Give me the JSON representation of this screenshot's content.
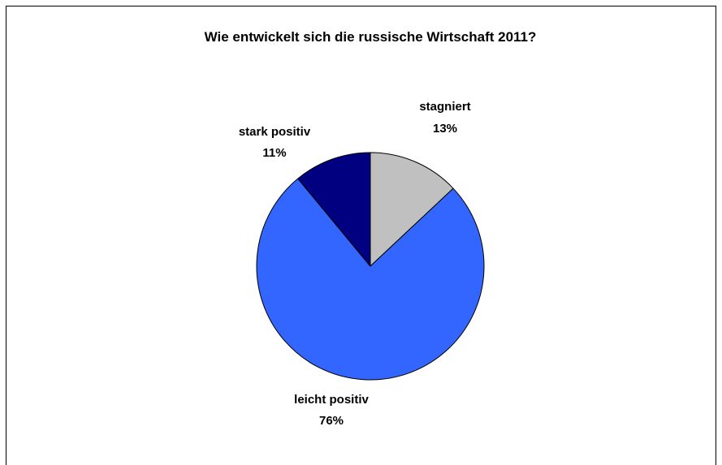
{
  "chart_data": {
    "type": "pie",
    "title": "Wie entwickelt sich die russische Wirtschaft 2011?",
    "categories": [
      "stagniert",
      "leicht positiv",
      "stark positiv"
    ],
    "values": [
      13,
      76,
      11
    ],
    "value_labels": [
      "13%",
      "76%",
      "11%"
    ],
    "colors": [
      "#C0C0C0",
      "#3366FF",
      "#000080"
    ],
    "start_angle_deg": 0,
    "direction": "clockwise",
    "legend": "none"
  }
}
